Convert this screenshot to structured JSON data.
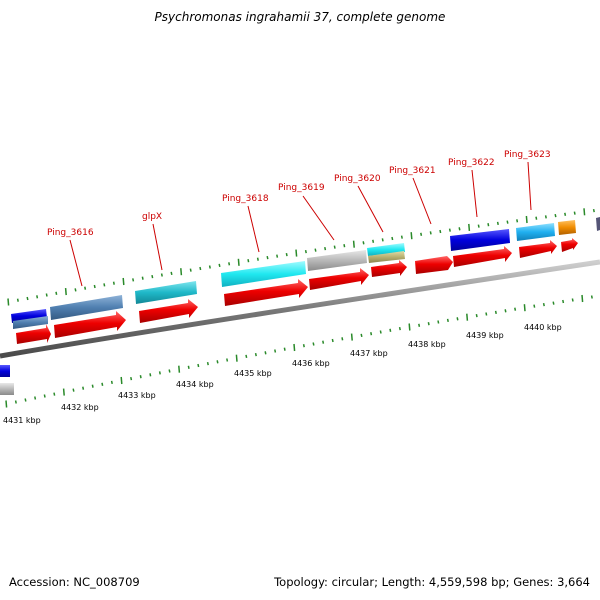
{
  "title": "Psychromonas ingrahamii 37, complete genome",
  "footer": {
    "accession": "Accession: NC_008709",
    "summary": "Topology: circular; Length: 4,559,598 bp; Genes: 3,664"
  },
  "colors": {
    "gene_cds": "#ee0000",
    "label": "#cc0000",
    "tick": "#2a8a2a",
    "backbone": "#7a7a7a",
    "feature_blue": "#0000dd",
    "feature_steel": "#4f7fb0",
    "feature_teal": "#1fb8c8",
    "feature_cyan": "#20e8f0",
    "feature_gray": "#b8b8b8",
    "feature_sky": "#20b0f0",
    "feature_orange": "#f08c00",
    "feature_olive": "#b8b070"
  },
  "scale_labels": [
    "4431 kbp",
    "4432 kbp",
    "4433 kbp",
    "4434 kbp",
    "4435 kbp",
    "4436 kbp",
    "4437 kbp",
    "4438 kbp",
    "4439 kbp",
    "4440 kbp"
  ],
  "gene_labels": [
    "Ping_3616",
    "glpX",
    "Ping_3618",
    "Ping_3619",
    "Ping_3620",
    "Ping_3621",
    "Ping_3622",
    "Ping_3623"
  ]
}
